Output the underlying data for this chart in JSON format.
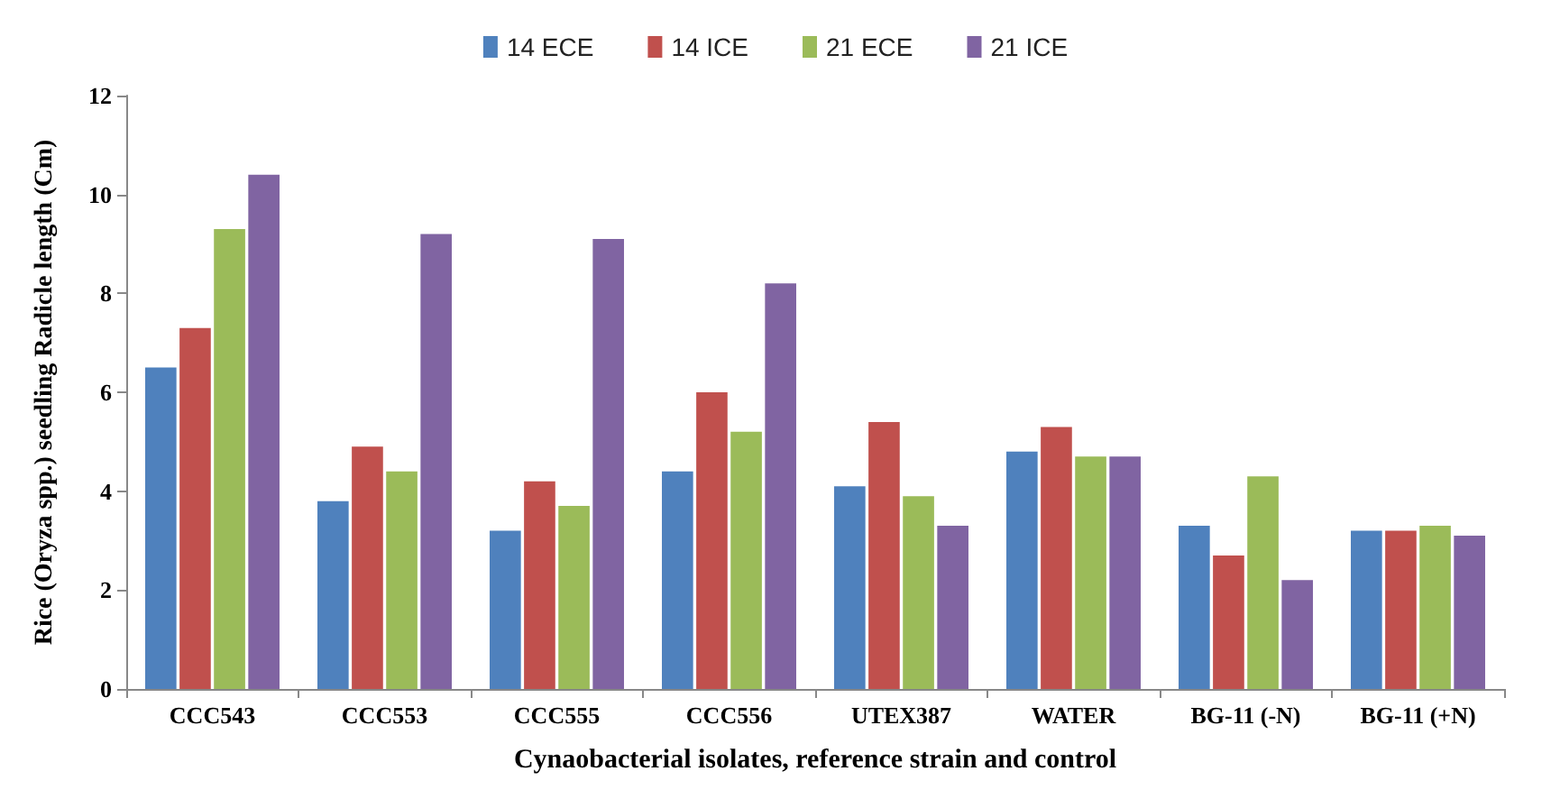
{
  "chart_data": {
    "type": "bar",
    "xlabel": "Cynaobacterial isolates, reference strain and control",
    "ylabel": "Rice (Oryza spp.) seedling Radicle length (Cm)",
    "categories": [
      "CCC543",
      "CCC553",
      "CCC555",
      "CCC556",
      "UTEX387",
      "WATER",
      "BG-11 (-N)",
      "BG-11 (+N)"
    ],
    "series": [
      {
        "name": "14 ECE",
        "color": "#4f81bd",
        "values": [
          6.5,
          3.8,
          3.2,
          4.4,
          4.1,
          4.8,
          3.3,
          3.2
        ]
      },
      {
        "name": "14 ICE",
        "color": "#c0504d",
        "values": [
          7.3,
          4.9,
          4.2,
          6.0,
          5.4,
          5.3,
          2.7,
          3.2
        ]
      },
      {
        "name": "21 ECE",
        "color": "#9bbb59",
        "values": [
          9.3,
          4.4,
          3.7,
          5.2,
          3.9,
          4.7,
          4.3,
          3.3
        ]
      },
      {
        "name": "21 ICE",
        "color": "#8064a2",
        "values": [
          10.4,
          9.2,
          9.1,
          8.2,
          3.3,
          4.7,
          2.2,
          3.1
        ]
      }
    ],
    "ylim": [
      0,
      12
    ],
    "yticks": [
      0,
      2,
      4,
      6,
      8,
      10,
      12
    ],
    "grid": false,
    "legend": "top"
  }
}
